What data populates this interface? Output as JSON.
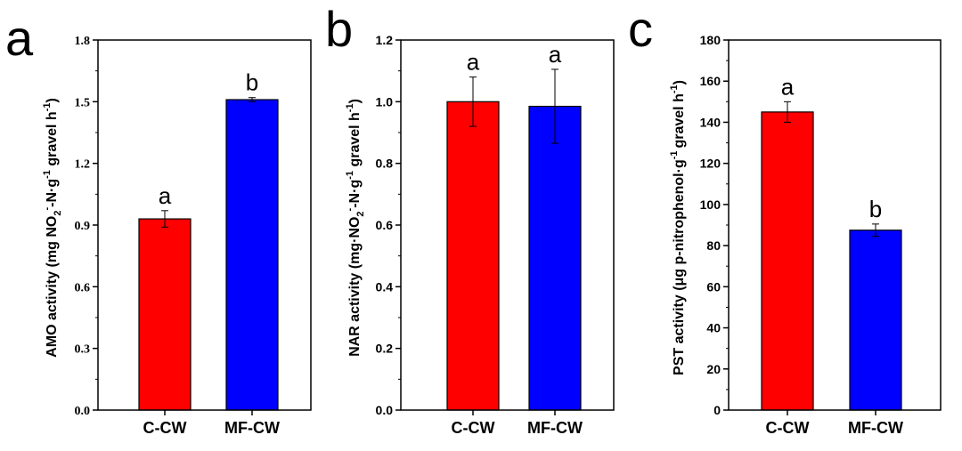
{
  "colors": {
    "red": "#ff0000",
    "blue": "#0000ff"
  },
  "chart_data": [
    {
      "type": "bar",
      "panel_label": "a",
      "categories": [
        "C-CW",
        "MF-CW"
      ],
      "values": [
        0.93,
        1.51
      ],
      "errors": [
        0.04,
        0.01
      ],
      "significance": [
        "a",
        "b"
      ],
      "colors": [
        "#ff0000",
        "#0000ff"
      ],
      "ylim": [
        0,
        1.8
      ],
      "yticks": [
        "0.0",
        "0.3",
        "0.6",
        "0.9",
        "1.2",
        "1.5",
        "1.8"
      ],
      "ylabel_main": "AMO activity (mg NO",
      "ylabel_sub": "2",
      "ylabel_sup1": "-",
      "ylabel_mid": "-N·g",
      "ylabel_sup2": "-1",
      "ylabel_end": " gravel h",
      "ylabel_sup3": "-1",
      "ylabel_close": ")"
    },
    {
      "type": "bar",
      "panel_label": "b",
      "categories": [
        "C-CW",
        "MF-CW"
      ],
      "values": [
        1.0,
        0.985
      ],
      "errors": [
        0.08,
        0.12
      ],
      "significance": [
        "a",
        "a"
      ],
      "colors": [
        "#ff0000",
        "#0000ff"
      ],
      "ylim": [
        0,
        1.2
      ],
      "yticks": [
        "0.0",
        "0.2",
        "0.4",
        "0.6",
        "0.8",
        "1.0",
        "1.2"
      ],
      "ylabel_main": "NAR activity (mg·NO",
      "ylabel_sub": "2",
      "ylabel_sup1": "-",
      "ylabel_mid": "-N·g",
      "ylabel_sup2": "-1",
      "ylabel_end": " gravel h",
      "ylabel_sup3": "-1",
      "ylabel_close": ")"
    },
    {
      "type": "bar",
      "panel_label": "c",
      "categories": [
        "C-CW",
        "MF-CW"
      ],
      "values": [
        145,
        87.5
      ],
      "errors": [
        5,
        3
      ],
      "significance": [
        "a",
        "b"
      ],
      "colors": [
        "#ff0000",
        "#0000ff"
      ],
      "ylim": [
        0,
        180
      ],
      "yticks": [
        "0",
        "20",
        "40",
        "60",
        "80",
        "100",
        "120",
        "140",
        "160",
        "180"
      ],
      "ylabel_main": "PST activity (μg p-nitrophenol·g",
      "ylabel_sup1": "-1",
      "ylabel_end": "gravel h",
      "ylabel_sup2": "-1",
      "ylabel_close": ")"
    }
  ]
}
